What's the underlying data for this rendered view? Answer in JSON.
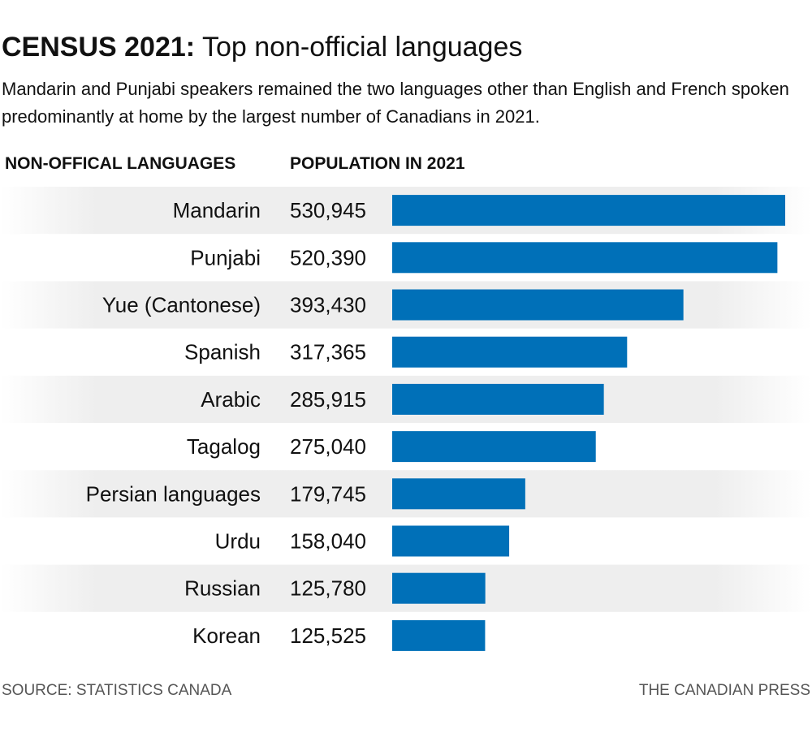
{
  "header": {
    "title_bold": "CENSUS 2021:",
    "title_rest": " Top non-official languages",
    "subtitle": "Mandarin and Punjabi speakers remained the two languages other than English and French spoken predominantly at home by the largest number of Canadians in 2021."
  },
  "columns": {
    "left": "NON-OFFICAL LANGUAGES",
    "right": "POPULATION IN 2021"
  },
  "chart_data": {
    "type": "bar",
    "orientation": "horizontal",
    "categories": [
      "Mandarin",
      "Punjabi",
      "Yue (Cantonese)",
      "Spanish",
      "Arabic",
      "Tagalog",
      "Persian languages",
      "Urdu",
      "Russian",
      "Korean"
    ],
    "values": [
      530945,
      520390,
      393430,
      317365,
      285915,
      275040,
      179745,
      158040,
      125780,
      125525
    ],
    "value_labels": [
      "530,945",
      "520,390",
      "393,430",
      "317,365",
      "285,915",
      "275,040",
      "179,745",
      "158,040",
      "125,780",
      "125,525"
    ],
    "bar_color": "#0070b8",
    "stripe_color": "#eeeeee",
    "grid": false
  },
  "footer": {
    "source": "SOURCE: STATISTICS CANADA",
    "credit": "THE CANADIAN PRESS"
  }
}
